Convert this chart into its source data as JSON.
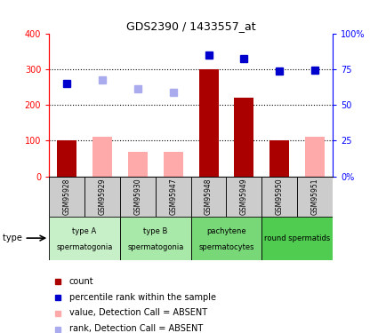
{
  "title": "GDS2390 / 1433557_at",
  "samples": [
    "GSM95928",
    "GSM95929",
    "GSM95930",
    "GSM95947",
    "GSM95948",
    "GSM95949",
    "GSM95950",
    "GSM95951"
  ],
  "count_values": [
    100,
    null,
    null,
    null,
    300,
    220,
    100,
    null
  ],
  "count_absent_values": [
    null,
    110,
    70,
    70,
    null,
    null,
    null,
    110
  ],
  "rank_present_values": [
    260,
    null,
    null,
    null,
    340,
    330,
    295,
    298
  ],
  "rank_absent_values": [
    null,
    270,
    245,
    235,
    null,
    null,
    null,
    null
  ],
  "cell_type_groups": [
    {
      "label1": "type A",
      "label2": "spermatogonia",
      "cols": [
        0,
        1
      ],
      "color": "#c8f0c8"
    },
    {
      "label1": "type B",
      "label2": "spermatogonia",
      "cols": [
        2,
        3
      ],
      "color": "#a8e8a8"
    },
    {
      "label1": "pachytene",
      "label2": "spermatocytes",
      "cols": [
        4,
        5
      ],
      "color": "#78d878"
    },
    {
      "label1": "round spermatids",
      "label2": "",
      "cols": [
        6,
        7
      ],
      "color": "#50cc50"
    }
  ],
  "left_ylim": [
    0,
    400
  ],
  "right_ylim": [
    0,
    400
  ],
  "right_ticks": [
    0,
    100,
    200,
    300,
    400
  ],
  "right_tick_labels": [
    "0%",
    "25",
    "50",
    "75",
    "100%"
  ],
  "left_ticks": [
    0,
    100,
    200,
    300,
    400
  ],
  "left_tick_labels": [
    "0",
    "100",
    "200",
    "300",
    "400"
  ],
  "dotted_lines": [
    100,
    200,
    300
  ],
  "bar_width": 0.55,
  "count_color": "#aa0000",
  "count_absent_color": "#ffaaaa",
  "rank_present_color": "#0000cc",
  "rank_absent_color": "#aaaaee",
  "legend_items": [
    {
      "color": "#aa0000",
      "label": "count",
      "marker": "s"
    },
    {
      "color": "#0000cc",
      "label": "percentile rank within the sample",
      "marker": "s"
    },
    {
      "color": "#ffaaaa",
      "label": "value, Detection Call = ABSENT",
      "marker": "s"
    },
    {
      "color": "#aaaaee",
      "label": "rank, Detection Call = ABSENT",
      "marker": "s"
    }
  ],
  "sample_box_color": "#cccccc",
  "n_samples": 8
}
